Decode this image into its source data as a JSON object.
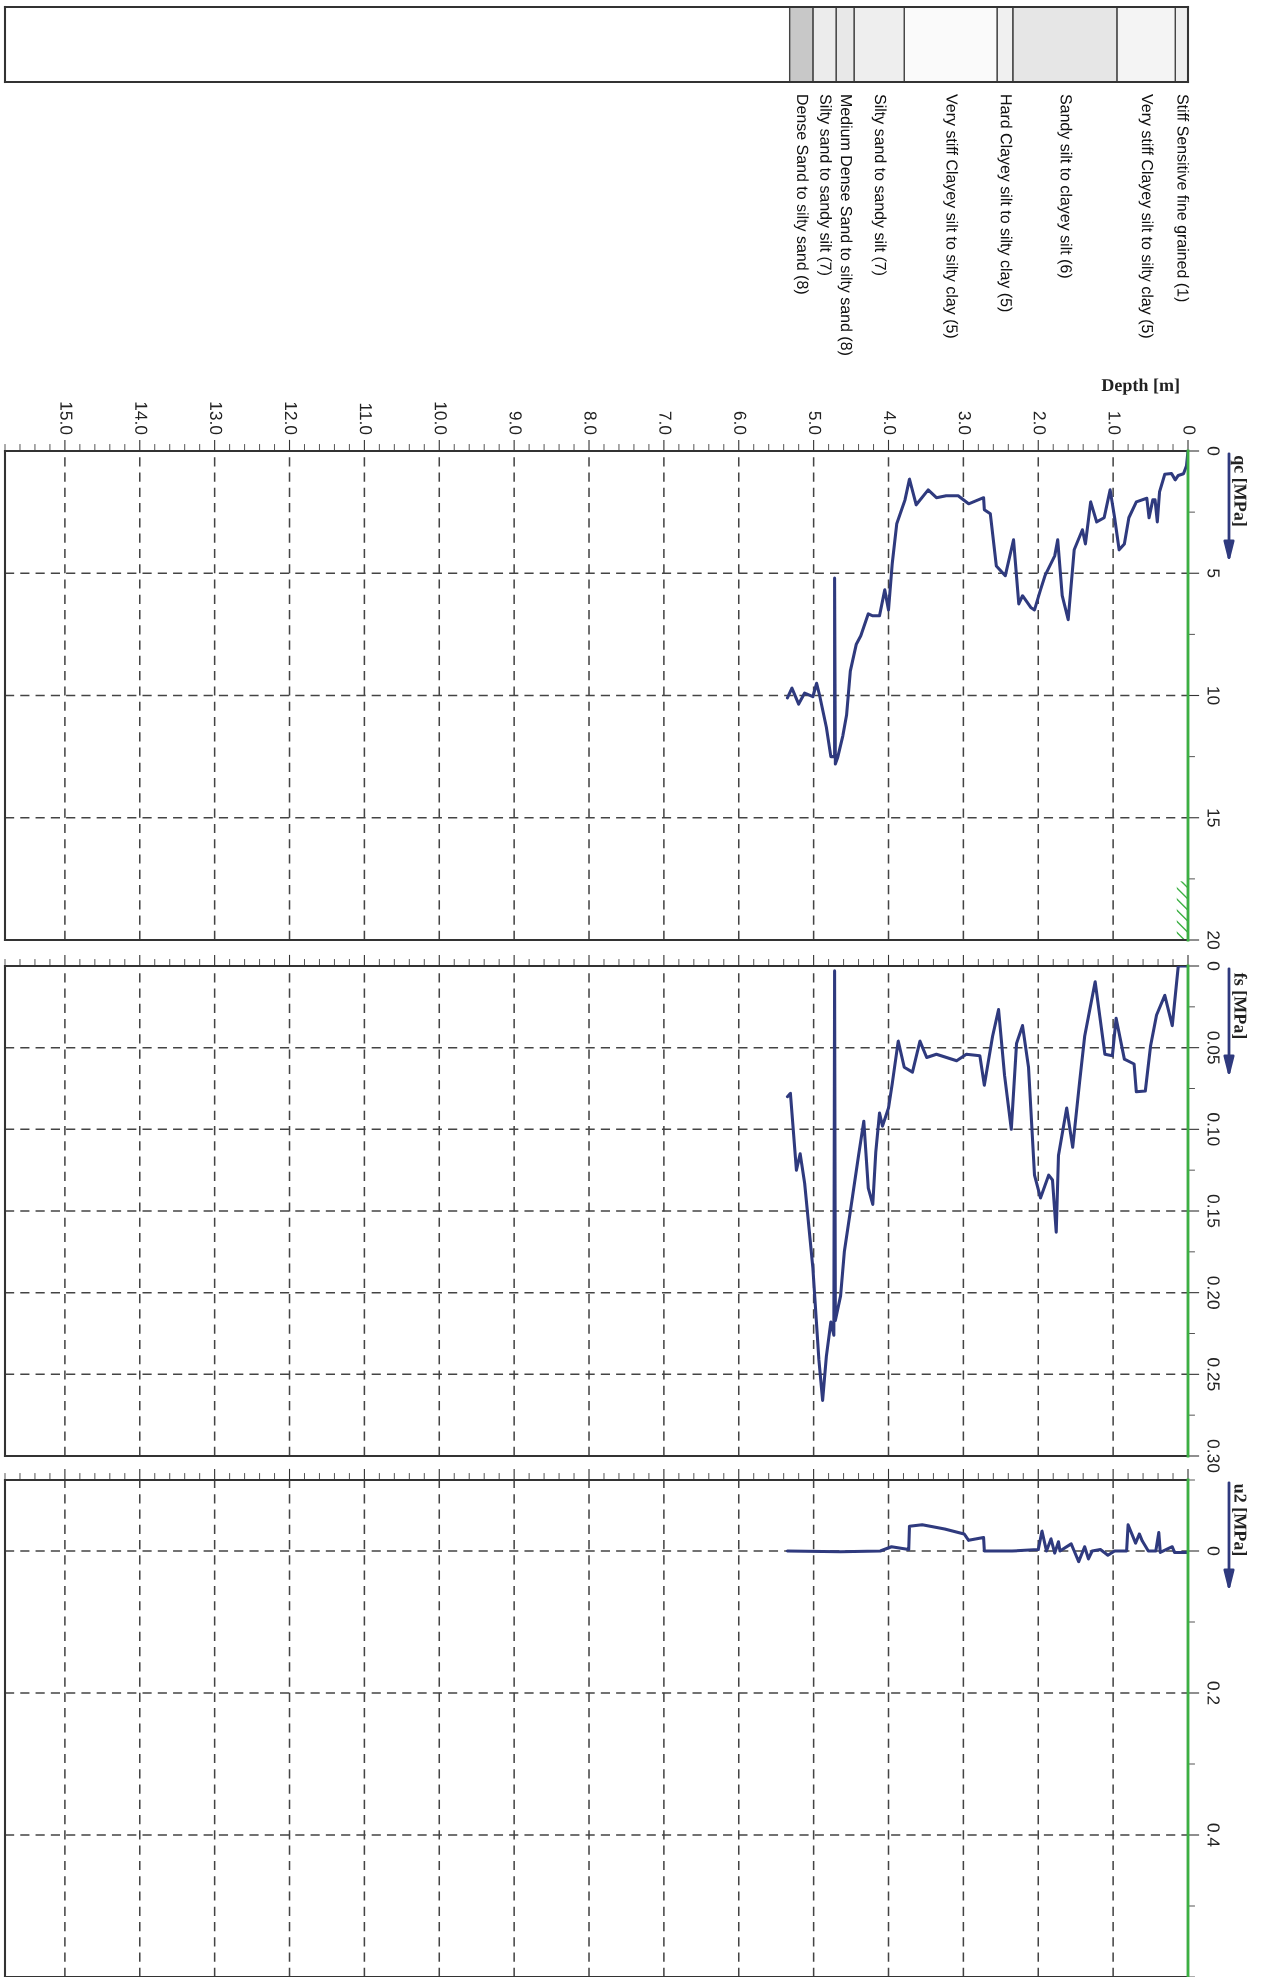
{
  "chart_data": [
    {
      "type": "bar",
      "orientation": "horizontal",
      "stacked": true,
      "categories": [
        null
      ],
      "xlim": [
        15.8,
        0
      ],
      "tick_labels": false,
      "series": [
        {
          "name": "Stiff Sensitive fine grained (1)",
          "color": "#eeeeee",
          "values": [
            0.17
          ]
        },
        {
          "name": "Very stiff Clayey silt to silty clay (5)",
          "color": "#f4f4f4",
          "values": [
            0.78
          ]
        },
        {
          "name": "Sandy silt to clayey silt (6)",
          "color": "#e6e6e6",
          "values": [
            1.39
          ]
        },
        {
          "name": "Hard Clayey silt to silty clay (5)",
          "color": "#f0f0f0",
          "values": [
            0.21
          ]
        },
        {
          "name": "Very stiff Clayey silt to silty clay (5)",
          "color": "#fafafa",
          "values": [
            1.24
          ]
        },
        {
          "name": "Silty sand to sandy silt (7)",
          "color": "#eeeeee",
          "values": [
            0.67
          ]
        },
        {
          "name": "Medium Dense Sand to silty sand (8)",
          "color": "#e8e8e8",
          "values": [
            0.24
          ]
        },
        {
          "name": "Silty sand to sandy silt (7)",
          "color": "#ececec",
          "values": [
            0.31
          ]
        },
        {
          "name": "Dense Sand to silty sand (8)",
          "color": "#c8c8c8",
          "values": [
            0.31
          ]
        }
      ]
    },
    {
      "type": "line",
      "xlabel": "Depth [m]",
      "ylabel": "qc [MPa]",
      "xlim": [
        15.8,
        0
      ],
      "ylim": [
        20,
        0
      ],
      "xticks": [
        0,
        {
          "value": 1,
          "label": "1.0"
        },
        {
          "value": 2,
          "label": "2.0"
        },
        {
          "value": 3,
          "label": "3.0"
        },
        {
          "value": 4,
          "label": "4.0"
        },
        {
          "value": 5,
          "label": "5.0"
        },
        {
          "value": 6,
          "label": "6.0"
        },
        {
          "value": 7,
          "label": "7.0"
        },
        {
          "value": 8,
          "label": "8.0"
        },
        {
          "value": 9,
          "label": "9.0"
        },
        {
          "value": 10,
          "label": "10.0"
        },
        {
          "value": 11,
          "label": "11.0"
        },
        {
          "value": 12,
          "label": "12.0"
        },
        {
          "value": 13,
          "label": "13.0"
        },
        {
          "value": 14,
          "label": "14.0"
        },
        {
          "value": 15,
          "label": "15.0"
        }
      ],
      "yticks": [
        0,
        5,
        10,
        15,
        20
      ],
      "grid": true,
      "ref_lines": [
        {
          "axis": "x",
          "value": 0,
          "color": "#3cb043"
        }
      ],
      "series": [
        {
          "color": "#2f3a7e",
          "x": [
            0,
            0.02,
            0.06,
            0.13,
            0.17,
            0.22,
            0.31,
            0.38,
            0.41,
            0.44,
            0.47,
            0.52,
            0.55,
            0.69,
            0.79,
            0.85,
            0.92,
            0.98,
            1.04,
            1.12,
            1.22,
            1.3,
            1.37,
            1.41,
            1.52,
            1.6,
            1.68,
            1.74,
            1.78,
            1.91,
            1.97,
            2.05,
            2.1,
            2.21,
            2.26,
            2.33,
            2.44,
            2.56,
            2.64,
            2.72,
            2.73,
            2.93,
            3.07,
            3.23,
            3.36,
            3.47,
            3.63,
            3.72,
            3.78,
            3.89,
            3.95,
            4.0,
            4.05,
            4.12,
            4.21,
            4.27,
            4.37,
            4.43,
            4.51,
            4.56,
            4.61,
            4.68,
            4.71,
            4.72,
            4.72,
            4.77,
            4.83,
            4.92,
            4.96,
            5.01,
            5.12,
            5.2,
            5.29,
            5.35
          ],
          "values": [
            0,
            0.6,
            0.93,
            1.0,
            1.18,
            0.92,
            0.95,
            1.67,
            2.9,
            2.0,
            2.0,
            2.73,
            1.93,
            2.08,
            2.73,
            3.8,
            4.04,
            2.73,
            1.59,
            2.73,
            2.9,
            2.08,
            3.8,
            3.22,
            4.04,
            6.9,
            5.92,
            3.63,
            4.29,
            5.1,
            5.68,
            6.5,
            6.4,
            5.92,
            6.25,
            3.63,
            5.1,
            4.7,
            2.57,
            2.4,
            1.91,
            2.16,
            1.83,
            1.83,
            1.91,
            1.59,
            2.2,
            1.15,
            2.0,
            2.98,
            4.6,
            6.5,
            5.68,
            6.74,
            6.74,
            6.66,
            7.56,
            7.9,
            9.0,
            10.8,
            11.65,
            12.55,
            12.8,
            5.2,
            12.5,
            12.5,
            11.3,
            10.0,
            9.5,
            10.05,
            9.9,
            10.35,
            9.7,
            10.1
          ]
        }
      ]
    },
    {
      "type": "line",
      "ylabel": "fs [MPa]",
      "xlim": [
        15.8,
        0
      ],
      "ylim": [
        0.3,
        0
      ],
      "tick_labels": "y",
      "xticks": [
        0,
        1,
        2,
        3,
        4,
        5,
        6,
        7,
        8,
        9,
        10,
        11,
        12,
        13,
        14,
        15
      ],
      "yticks": [
        0,
        0.05,
        {
          "value": 0.1,
          "label": "0.10"
        },
        0.15,
        {
          "value": 0.2,
          "label": "0.20"
        },
        0.25,
        {
          "value": 0.3,
          "label": "0.30"
        }
      ],
      "grid": true,
      "ref_lines": [
        {
          "axis": "x",
          "value": 0,
          "color": "#3cb043"
        }
      ],
      "series": [
        {
          "color": "#2f3a7e",
          "x": [
            0,
            0.13,
            0.21,
            0.31,
            0.42,
            0.5,
            0.57,
            0.69,
            0.72,
            0.85,
            0.96,
            1.01,
            1.11,
            1.24,
            1.38,
            1.45,
            1.54,
            1.62,
            1.73,
            1.76,
            1.81,
            1.86,
            1.97,
            2.05,
            2.13,
            2.21,
            2.29,
            2.36,
            2.45,
            2.53,
            2.61,
            2.72,
            2.78,
            2.96,
            3.09,
            3.36,
            3.49,
            3.58,
            3.68,
            3.79,
            3.87,
            3.95,
            4.0,
            4.08,
            4.12,
            4.17,
            4.21,
            4.27,
            4.33,
            4.4,
            4.48,
            4.59,
            4.64,
            4.71,
            4.72,
            4.73,
            4.77,
            4.83,
            4.88,
            4.93,
            5.01,
            5.12,
            5.18,
            5.23,
            5.31,
            5.35
          ],
          "values": [
            0,
            0,
            0.0365,
            0.018,
            0.03,
            0.049,
            0.0765,
            0.077,
            0.06,
            0.057,
            0.032,
            0.055,
            0.054,
            0.0096,
            0.043,
            0.072,
            0.111,
            0.087,
            0.116,
            0.163,
            0.131,
            0.128,
            0.142,
            0.128,
            0.062,
            0.0365,
            0.0475,
            0.1,
            0.067,
            0.0267,
            0.043,
            0.073,
            0.055,
            0.054,
            0.058,
            0.054,
            0.056,
            0.046,
            0.065,
            0.062,
            0.046,
            0.072,
            0.087,
            0.098,
            0.09,
            0.114,
            0.146,
            0.136,
            0.095,
            0.116,
            0.141,
            0.175,
            0.202,
            0.217,
            0.003,
            0.226,
            0.218,
            0.239,
            0.266,
            0.241,
            0.185,
            0.133,
            0.115,
            0.125,
            0.078,
            0.08
          ]
        }
      ]
    },
    {
      "type": "line",
      "ylabel": "u2 [MPa]",
      "xlim": [
        15.8,
        0
      ],
      "ylim": [
        0.6,
        -0.1
      ],
      "tick_labels": "y",
      "xticks": [
        0,
        1,
        2,
        3,
        4,
        5,
        6,
        7,
        8,
        9,
        10,
        11,
        12,
        13,
        14,
        15
      ],
      "yticks": [
        0,
        0.2,
        0.4
      ],
      "grid": true,
      "ref_lines": [
        {
          "axis": "x",
          "value": 0,
          "color": "#3cb043"
        }
      ],
      "series": [
        {
          "color": "#2f3a7e",
          "x": [
            0,
            0.18,
            0.21,
            0.37,
            0.39,
            0.43,
            0.53,
            0.61,
            0.65,
            0.7,
            0.8,
            0.82,
            0.98,
            1.07,
            1.17,
            1.28,
            1.33,
            1.38,
            1.46,
            1.52,
            1.56,
            1.71,
            1.73,
            1.78,
            1.83,
            1.89,
            1.95,
            2.0,
            2.35,
            2.72,
            2.73,
            2.93,
            2.99,
            3.25,
            3.55,
            3.72,
            3.73,
            3.96,
            4.11,
            4.64,
            5.35
          ],
          "values": [
            0.002,
            0.002,
            -0.006,
            0.002,
            -0.026,
            0,
            0,
            -0.014,
            -0.024,
            -0.011,
            -0.037,
            0,
            0,
            0.006,
            -0.002,
            0,
            0.011,
            -0.006,
            0.015,
            0,
            -0.01,
            0,
            -0.013,
            0.003,
            -0.017,
            0,
            -0.028,
            -0.002,
            0,
            0,
            -0.019,
            -0.015,
            -0.024,
            -0.031,
            -0.037,
            -0.035,
            -0.002,
            -0.006,
            0,
            0.001,
            0
          ]
        }
      ]
    }
  ]
}
